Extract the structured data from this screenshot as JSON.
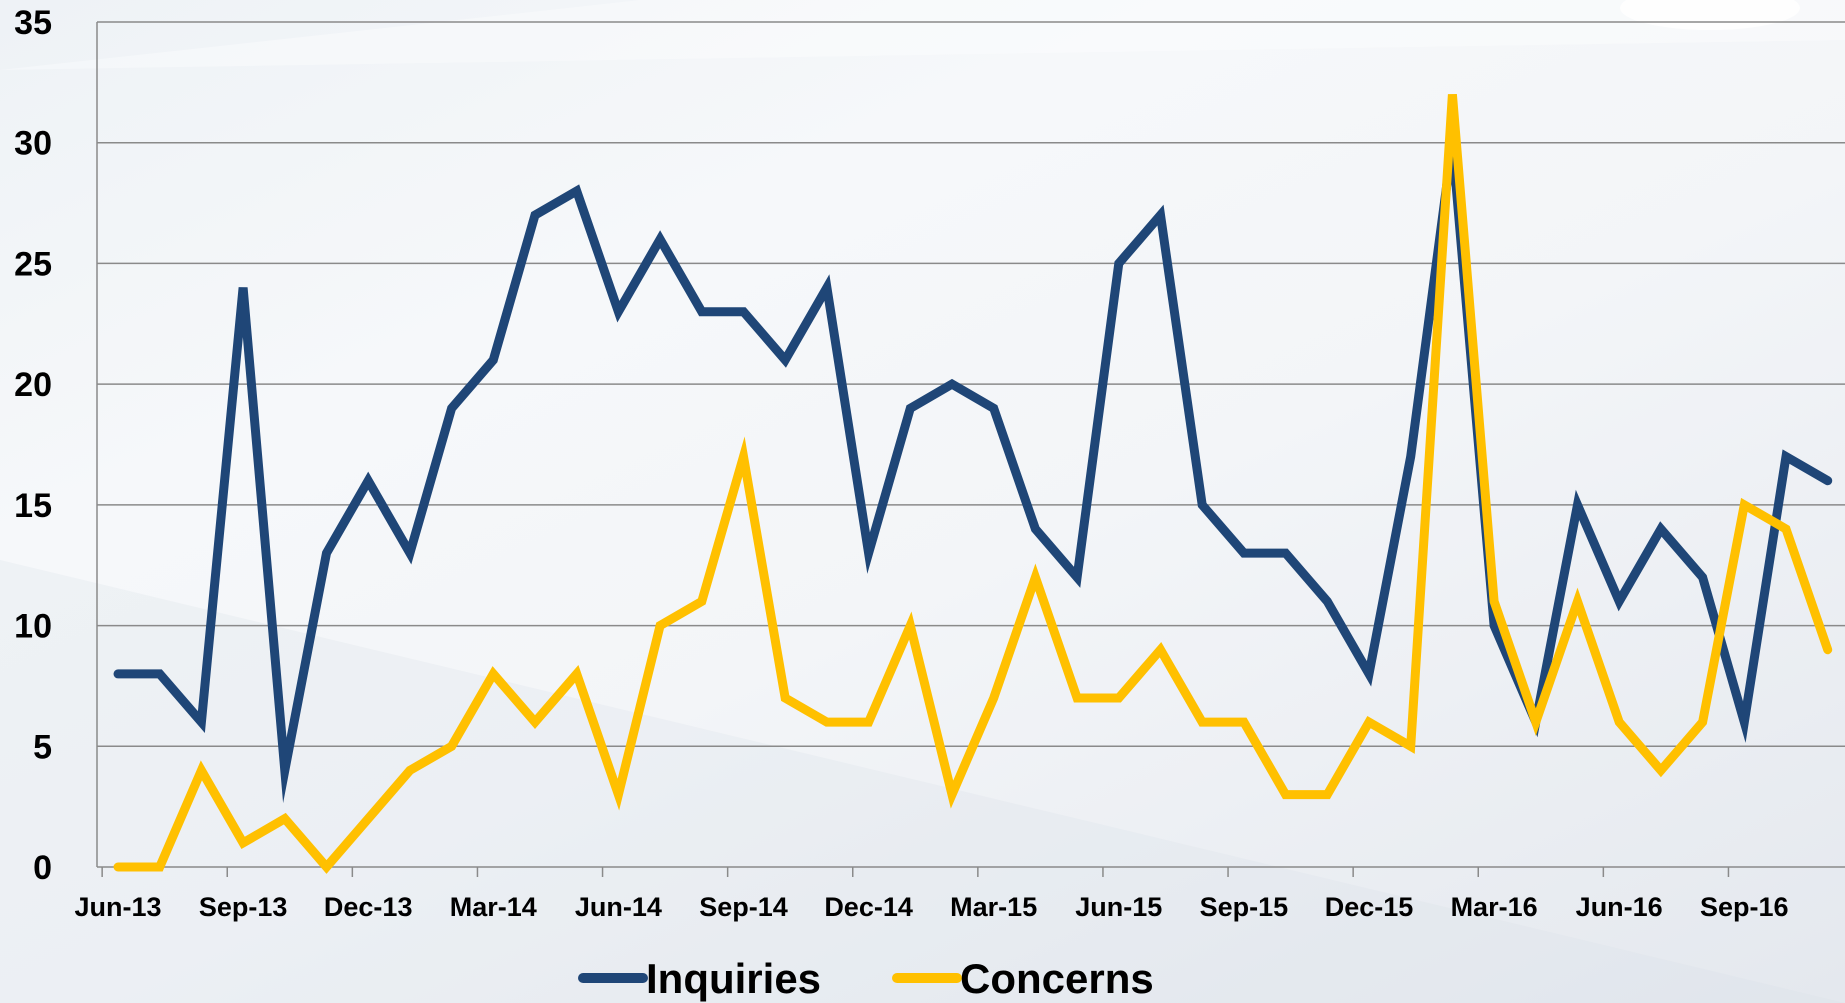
{
  "chart_data": {
    "type": "line",
    "title": "",
    "xlabel": "",
    "ylabel": "",
    "ylim": [
      0,
      35
    ],
    "yticks": [
      0,
      5,
      10,
      15,
      20,
      25,
      30,
      35
    ],
    "x": [
      "Jun-13",
      "Jul-13",
      "Aug-13",
      "Sep-13",
      "Oct-13",
      "Nov-13",
      "Dec-13",
      "Jan-14",
      "Feb-14",
      "Mar-14",
      "Apr-14",
      "May-14",
      "Jun-14",
      "Jul-14",
      "Aug-14",
      "Sep-14",
      "Oct-14",
      "Nov-14",
      "Dec-14",
      "Jan-15",
      "Feb-15",
      "Mar-15",
      "Apr-15",
      "May-15",
      "Jun-15",
      "Jul-15",
      "Aug-15",
      "Sep-15",
      "Oct-15",
      "Nov-15",
      "Dec-15",
      "Jan-16",
      "Feb-16",
      "Mar-16",
      "Apr-16",
      "May-16",
      "Jun-16",
      "Jul-16",
      "Aug-16",
      "Sep-16",
      "Oct-16",
      "Nov-16",
      "Dec-16"
    ],
    "x_tick_labels": [
      "Jun-13",
      "Sep-13",
      "Dec-13",
      "Mar-14",
      "Jun-14",
      "Sep-14",
      "Dec-14",
      "Mar-15",
      "Jun-15",
      "Sep-15",
      "Dec-15",
      "Mar-16",
      "Jun-16",
      "Sep-16"
    ],
    "grid": true,
    "legend_position": "bottom",
    "series": [
      {
        "name": "Inquiries",
        "color": "#1f4677",
        "values": [
          8,
          8,
          6,
          24,
          4,
          13,
          16,
          13,
          19,
          21,
          27,
          28,
          23,
          26,
          23,
          23,
          21,
          24,
          13,
          19,
          20,
          19,
          14,
          12,
          25,
          27,
          15,
          13,
          13,
          11,
          8,
          17,
          30,
          10,
          6,
          15,
          11,
          14,
          12,
          6,
          17,
          16,
          null
        ]
      },
      {
        "name": "Concerns",
        "color": "#ffc000",
        "values": [
          0,
          0,
          4,
          1,
          2,
          0,
          2,
          4,
          5,
          8,
          6,
          8,
          3,
          10,
          11,
          17,
          7,
          6,
          6,
          10,
          3,
          7,
          12,
          7,
          7,
          9,
          6,
          6,
          3,
          3,
          6,
          5,
          32,
          11,
          6,
          11,
          6,
          4,
          6,
          15,
          14,
          9,
          null
        ]
      }
    ]
  }
}
